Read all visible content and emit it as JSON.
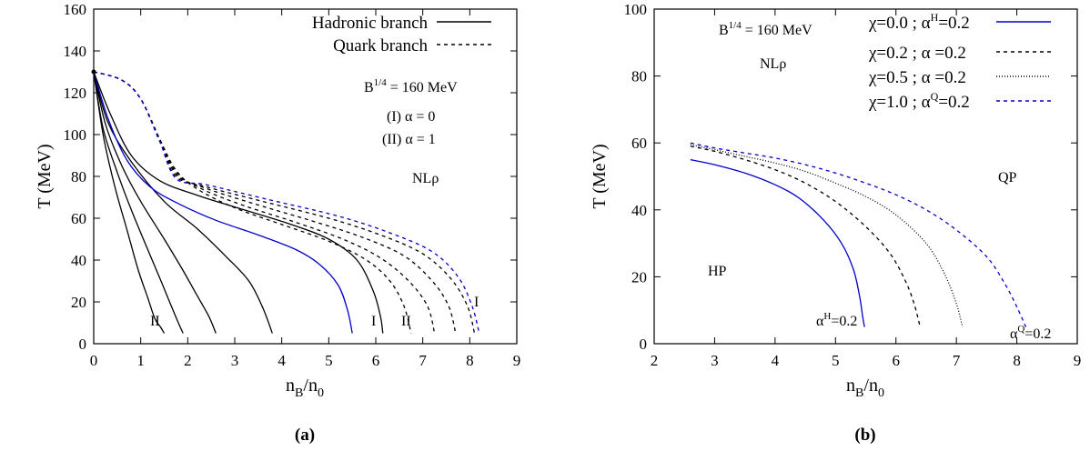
{
  "colors": {
    "axis": "#000000",
    "hadronic": "#000000",
    "quark": "#000000",
    "highlight": "#0000cc"
  },
  "chart_data": [
    {
      "type": "line",
      "caption": "(a)",
      "xlabel": "n_B/n_0",
      "ylabel": "T (MeV)",
      "xlim": [
        0,
        9
      ],
      "ylim": [
        0,
        160
      ],
      "xticks": [
        0,
        1,
        2,
        3,
        4,
        5,
        6,
        7,
        8,
        9
      ],
      "yticks": [
        0,
        20,
        40,
        60,
        80,
        100,
        120,
        140,
        160
      ],
      "grid": false,
      "legend_position": "top-right",
      "legend": [
        {
          "name": "Hadronic branch",
          "style": "solid"
        },
        {
          "name": "Quark branch",
          "style": "dashed"
        }
      ],
      "annotations": {
        "bag": "B^{1/4} = 160 MeV",
        "case_one": "(I)  α = 0",
        "case_two": "(II)  α = 1",
        "model": "NLρ",
        "label_II_left": "II",
        "label_I_mid": "I",
        "label_II_mid": "II",
        "label_I_right": "I"
      },
      "series": [
        {
          "branch": "hadronic",
          "color": "#000000",
          "points": [
            [
              0,
              130
            ],
            [
              0.2,
              100
            ],
            [
              0.45,
              75
            ],
            [
              0.7,
              55
            ],
            [
              0.95,
              35
            ],
            [
              1.15,
              22
            ],
            [
              1.3,
              12
            ],
            [
              1.42,
              8
            ],
            [
              1.5,
              5
            ]
          ]
        },
        {
          "branch": "hadronic",
          "color": "#000000",
          "points": [
            [
              0,
              130
            ],
            [
              0.2,
              103
            ],
            [
              0.5,
              82
            ],
            [
              0.8,
              64
            ],
            [
              1.15,
              45
            ],
            [
              1.45,
              29
            ],
            [
              1.65,
              18
            ],
            [
              1.8,
              10
            ],
            [
              1.9,
              5
            ]
          ]
        },
        {
          "branch": "hadronic",
          "color": "#000000",
          "points": [
            [
              0,
              130
            ],
            [
              0.25,
              105
            ],
            [
              0.6,
              85
            ],
            [
              1.0,
              68
            ],
            [
              1.5,
              50
            ],
            [
              1.9,
              35
            ],
            [
              2.2,
              23
            ],
            [
              2.45,
              13
            ],
            [
              2.6,
              5
            ]
          ]
        },
        {
          "branch": "hadronic",
          "color": "#000000",
          "points": [
            [
              0,
              130
            ],
            [
              0.3,
              106
            ],
            [
              0.8,
              87
            ],
            [
              1.5,
              68
            ],
            [
              2.2,
              55
            ],
            [
              2.8,
              42
            ],
            [
              3.3,
              30
            ],
            [
              3.6,
              17
            ],
            [
              3.8,
              5
            ]
          ]
        },
        {
          "branch": "hadronic",
          "color": "#0000cc",
          "points": [
            [
              0,
              130
            ],
            [
              0.3,
              108
            ],
            [
              0.7,
              88
            ],
            [
              1.2,
              75
            ],
            [
              1.8,
              67
            ],
            [
              2.6,
              59
            ],
            [
              3.5,
              52
            ],
            [
              4.3,
              45
            ],
            [
              4.8,
              38
            ],
            [
              5.2,
              28
            ],
            [
              5.4,
              16
            ],
            [
              5.5,
              5
            ]
          ]
        },
        {
          "branch": "hadronic",
          "color": "#000000",
          "points": [
            [
              0,
              130
            ],
            [
              0.35,
              110
            ],
            [
              0.8,
              90
            ],
            [
              1.4,
              78
            ],
            [
              2.2,
              71
            ],
            [
              3.2,
              64
            ],
            [
              4.2,
              57
            ],
            [
              5.0,
              50
            ],
            [
              5.6,
              40
            ],
            [
              5.95,
              25
            ],
            [
              6.1,
              13
            ],
            [
              6.15,
              5
            ]
          ]
        },
        {
          "branch": "quark",
          "color": "#000000",
          "points": [
            [
              0,
              130
            ],
            [
              0.6,
              126
            ],
            [
              1.0,
              117
            ],
            [
              1.4,
              98
            ],
            [
              1.75,
              83
            ],
            [
              2.2,
              74
            ],
            [
              3.0,
              65
            ],
            [
              4.0,
              57
            ],
            [
              5.0,
              49
            ],
            [
              5.8,
              40
            ],
            [
              6.3,
              30
            ],
            [
              6.6,
              18
            ],
            [
              6.75,
              5
            ]
          ]
        },
        {
          "branch": "quark",
          "color": "#000000",
          "points": [
            [
              0,
              130
            ],
            [
              0.6,
              126
            ],
            [
              1.0,
              117
            ],
            [
              1.4,
              98
            ],
            [
              1.75,
              82
            ],
            [
              2.3,
              74
            ],
            [
              3.2,
              66
            ],
            [
              4.3,
              58
            ],
            [
              5.3,
              50
            ],
            [
              6.1,
              41
            ],
            [
              6.7,
              30
            ],
            [
              7.1,
              18
            ],
            [
              7.25,
              5
            ]
          ]
        },
        {
          "branch": "quark",
          "color": "#000000",
          "points": [
            [
              0,
              130
            ],
            [
              0.6,
              126
            ],
            [
              1.0,
              117
            ],
            [
              1.4,
              98
            ],
            [
              1.75,
              81
            ],
            [
              2.3,
              75
            ],
            [
              3.4,
              67
            ],
            [
              4.6,
              59
            ],
            [
              5.7,
              51
            ],
            [
              6.6,
              42
            ],
            [
              7.2,
              30
            ],
            [
              7.55,
              18
            ],
            [
              7.7,
              5
            ]
          ]
        },
        {
          "branch": "quark",
          "color": "#000000",
          "points": [
            [
              0,
              130
            ],
            [
              0.6,
              126
            ],
            [
              1.0,
              117
            ],
            [
              1.4,
              97
            ],
            [
              1.75,
              80
            ],
            [
              2.4,
              75
            ],
            [
              3.6,
              68
            ],
            [
              5.0,
              60
            ],
            [
              6.1,
              52
            ],
            [
              7.0,
              43
            ],
            [
              7.6,
              31
            ],
            [
              7.95,
              18
            ],
            [
              8.1,
              5
            ]
          ]
        },
        {
          "branch": "quark",
          "color": "#0000cc",
          "points": [
            [
              0,
              130
            ],
            [
              0.6,
              126
            ],
            [
              1.0,
              117
            ],
            [
              1.4,
              97
            ],
            [
              1.75,
              79
            ],
            [
              2.4,
              76
            ],
            [
              3.7,
              69
            ],
            [
              5.2,
              61
            ],
            [
              6.3,
              53
            ],
            [
              7.2,
              44
            ],
            [
              7.75,
              32
            ],
            [
              8.05,
              18
            ],
            [
              8.2,
              5
            ]
          ]
        }
      ]
    },
    {
      "type": "line",
      "caption": "(b)",
      "xlabel": "n_B/n_0",
      "ylabel": "T (MeV)",
      "xlim": [
        2,
        9
      ],
      "ylim": [
        0,
        100
      ],
      "xticks": [
        2,
        3,
        4,
        5,
        6,
        7,
        8,
        9
      ],
      "yticks": [
        0,
        20,
        40,
        60,
        80,
        100
      ],
      "grid": false,
      "legend_position": "top-right",
      "annotations": {
        "bag": "B^{1/4} = 160 MeV",
        "model": "NLρ",
        "hadron_phase": "HP",
        "quark_phase": "QP",
        "alpha_h": "α^H=0.2",
        "alpha_q": "α^Q=0.2"
      },
      "series": [
        {
          "name": "χ=0.0  ;  α^H=0.2",
          "style": "solid",
          "color": "#0000cc",
          "points": [
            [
              2.6,
              55
            ],
            [
              3.0,
              53.5
            ],
            [
              3.5,
              51
            ],
            [
              4.0,
              47.5
            ],
            [
              4.4,
              43.5
            ],
            [
              4.8,
              37
            ],
            [
              5.1,
              30
            ],
            [
              5.3,
              22
            ],
            [
              5.4,
              14
            ],
            [
              5.45,
              8
            ],
            [
              5.48,
              5
            ]
          ]
        },
        {
          "name": "χ=0.2  ;  α =0.2",
          "style": "dashed",
          "color": "#000000",
          "points": [
            [
              2.6,
              59
            ],
            [
              3.0,
              57.5
            ],
            [
              3.5,
              55
            ],
            [
              4.0,
              52
            ],
            [
              4.5,
              48
            ],
            [
              5.0,
              42.5
            ],
            [
              5.5,
              35
            ],
            [
              5.9,
              27
            ],
            [
              6.15,
              19
            ],
            [
              6.3,
              12
            ],
            [
              6.4,
              5
            ]
          ]
        },
        {
          "name": "χ=0.5  ;  α =0.2",
          "style": "dotted",
          "color": "#000000",
          "points": [
            [
              2.6,
              59.5
            ],
            [
              3.0,
              58
            ],
            [
              3.5,
              56
            ],
            [
              4.0,
              54
            ],
            [
              4.5,
              51.5
            ],
            [
              5.0,
              48
            ],
            [
              5.5,
              44
            ],
            [
              6.0,
              38.5
            ],
            [
              6.5,
              30
            ],
            [
              6.8,
              21
            ],
            [
              7.0,
              12
            ],
            [
              7.1,
              5
            ]
          ]
        },
        {
          "name": "χ=1.0  ;  α^Q=0.2",
          "style": "dashed",
          "color": "#0000cc",
          "points": [
            [
              2.6,
              60
            ],
            [
              3.0,
              58.5
            ],
            [
              3.5,
              57
            ],
            [
              4.0,
              55.5
            ],
            [
              4.5,
              53.5
            ],
            [
              5.0,
              51
            ],
            [
              5.5,
              48
            ],
            [
              6.0,
              44.5
            ],
            [
              6.5,
              40
            ],
            [
              7.0,
              34
            ],
            [
              7.5,
              26
            ],
            [
              7.8,
              18
            ],
            [
              8.0,
              11
            ],
            [
              8.15,
              5
            ]
          ]
        }
      ]
    }
  ]
}
